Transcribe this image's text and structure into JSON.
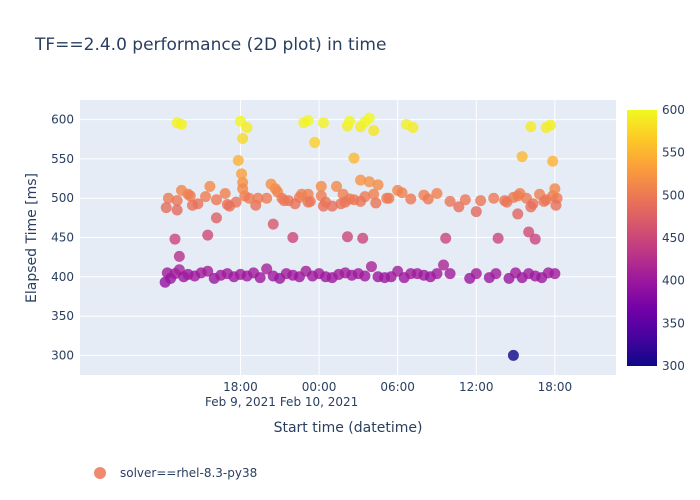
{
  "chart_data": {
    "type": "scatter",
    "title": "TF==2.4.0 performance (2D plot) in time",
    "xlabel": "Start time (datetime)",
    "ylabel": "Elapsed Time [ms]",
    "ylim": [
      275,
      625
    ],
    "xlim": [
      "2021-02-09 05:45",
      "2021-02-10 22:40"
    ],
    "grid": true,
    "legend_position": "bottom-left",
    "x_ticks": [
      {
        "value": "2021-02-09 18:00",
        "label": "18:00",
        "sublabel": "Feb 9, 2021"
      },
      {
        "value": "2021-02-10 00:00",
        "label": "00:00",
        "sublabel": "Feb 10, 2021"
      },
      {
        "value": "2021-02-10 06:00",
        "label": "06:00",
        "sublabel": ""
      },
      {
        "value": "2021-02-10 12:00",
        "label": "12:00",
        "sublabel": ""
      },
      {
        "value": "2021-02-10 18:00",
        "label": "18:00",
        "sublabel": ""
      }
    ],
    "y_ticks": [
      300,
      350,
      400,
      450,
      500,
      550,
      600
    ],
    "colorbar": {
      "min": 300,
      "max": 600,
      "ticks": [
        300,
        350,
        400,
        450,
        500,
        550,
        600
      ],
      "colors": [
        "#0d0887",
        "#46039f",
        "#7201a8",
        "#9c179e",
        "#bd3786",
        "#d8576b",
        "#ed7953",
        "#fb9f3a",
        "#fdca26",
        "#f0f921"
      ]
    },
    "series": [
      {
        "name": "solver==rhel-8.3-py38",
        "marker_color": "#ef8a6f",
        "x": [
          "2021-02-09 12:15",
          "2021-02-09 12:25",
          "2021-02-09 12:40",
          "2021-02-09 13:00",
          "2021-02-09 13:20",
          "2021-02-09 13:40",
          "2021-02-09 14:00",
          "2021-02-09 14:30",
          "2021-02-09 15:00",
          "2021-02-09 15:30",
          "2021-02-09 16:00",
          "2021-02-09 16:30",
          "2021-02-09 17:00",
          "2021-02-09 17:30",
          "2021-02-09 18:00",
          "2021-02-09 18:30",
          "2021-02-09 19:00",
          "2021-02-09 19:30",
          "2021-02-09 20:00",
          "2021-02-09 20:30",
          "2021-02-09 21:00",
          "2021-02-09 21:30",
          "2021-02-09 22:00",
          "2021-02-09 22:30",
          "2021-02-09 23:00",
          "2021-02-09 23:30",
          "2021-02-10 00:00",
          "2021-02-10 00:30",
          "2021-02-10 01:00",
          "2021-02-10 01:30",
          "2021-02-10 02:00",
          "2021-02-10 02:30",
          "2021-02-10 03:00",
          "2021-02-10 03:30",
          "2021-02-10 04:00",
          "2021-02-10 04:30",
          "2021-02-10 05:00",
          "2021-02-10 05:30",
          "2021-02-10 06:00",
          "2021-02-10 06:30",
          "2021-02-10 07:00",
          "2021-02-10 07:30",
          "2021-02-10 08:00",
          "2021-02-10 08:30",
          "2021-02-10 09:00",
          "2021-02-10 09:30",
          "2021-02-10 10:00",
          "2021-02-10 11:30",
          "2021-02-10 12:00",
          "2021-02-10 13:00",
          "2021-02-10 13:30",
          "2021-02-10 14:30",
          "2021-02-10 15:00",
          "2021-02-10 15:30",
          "2021-02-10 16:00",
          "2021-02-10 16:30",
          "2021-02-10 17:00",
          "2021-02-10 17:30",
          "2021-02-10 18:00",
          "2021-02-09 12:30",
          "2021-02-09 13:10",
          "2021-02-09 14:00",
          "2021-02-09 14:45",
          "2021-02-09 15:20",
          "2021-02-09 16:10",
          "2021-02-09 16:50",
          "2021-02-09 17:40",
          "2021-02-09 18:20",
          "2021-02-09 19:10",
          "2021-02-09 20:00",
          "2021-02-09 20:50",
          "2021-02-09 21:40",
          "2021-02-09 22:30",
          "2021-02-09 23:20",
          "2021-02-10 00:10",
          "2021-02-10 01:00",
          "2021-02-10 01:50",
          "2021-02-10 02:40",
          "2021-02-10 03:30",
          "2021-02-10 04:20",
          "2021-02-10 05:10",
          "2021-02-10 06:00",
          "2021-02-10 07:00",
          "2021-02-10 08:00",
          "2021-02-10 09:00",
          "2021-02-10 10:00",
          "2021-02-10 10:40",
          "2021-02-10 11:10",
          "2021-02-10 12:20",
          "2021-02-10 14:20",
          "2021-02-10 14:50",
          "2021-02-10 15:20",
          "2021-02-10 15:50",
          "2021-02-10 16:20",
          "2021-02-10 16:50",
          "2021-02-10 17:20",
          "2021-02-10 17:50",
          "2021-02-10 18:10",
          "2021-02-09 12:20",
          "2021-02-09 13:30",
          "2021-02-09 14:10",
          "2021-02-09 15:40",
          "2021-02-09 17:10",
          "2021-02-09 18:10",
          "2021-02-09 19:20",
          "2021-02-09 20:40",
          "2021-02-09 21:20",
          "2021-02-09 22:10",
          "2021-02-09 23:10",
          "2021-02-10 00:20",
          "2021-02-10 01:20",
          "2021-02-10 02:20",
          "2021-02-10 03:10",
          "2021-02-10 04:10",
          "2021-02-10 05:20",
          "2021-02-10 06:20",
          "2021-02-10 08:20",
          "2021-02-10 12:00",
          "2021-02-10 13:20",
          "2021-02-10 14:10",
          "2021-02-10 15:10",
          "2021-02-10 16:10",
          "2021-02-10 17:10",
          "2021-02-10 18:05",
          "2021-02-09 13:00",
          "2021-02-09 13:20",
          "2021-02-09 15:30",
          "2021-02-09 17:00",
          "2021-02-09 20:30",
          "2021-02-09 22:00",
          "2021-02-10 00:30",
          "2021-02-10 02:10",
          "2021-02-10 03:20",
          "2021-02-10 09:40",
          "2021-02-10 13:40",
          "2021-02-10 16:00",
          "2021-02-10 16:30",
          "2021-02-09 13:10",
          "2021-02-09 14:20",
          "2021-02-09 16:10",
          "2021-02-09 18:10",
          "2021-02-09 18:40",
          "2021-02-09 20:20",
          "2021-02-09 22:40",
          "2021-02-09 23:10",
          "2021-02-10 00:10",
          "2021-02-10 01:40",
          "2021-02-10 02:00",
          "2021-02-10 03:10",
          "2021-02-10 15:10",
          "2021-02-10 18:00",
          "2021-02-09 18:05",
          "2021-02-09 21:10",
          "2021-02-10 03:50",
          "2021-02-10 04:30",
          "2021-02-09 13:10",
          "2021-02-09 13:30",
          "2021-02-09 17:50",
          "2021-02-09 18:00",
          "2021-02-09 18:30",
          "2021-02-09 18:10",
          "2021-02-09 23:10",
          "2021-02-09 23:40",
          "2021-02-09 22:50",
          "2021-02-10 00:20",
          "2021-02-10 02:10",
          "2021-02-10 02:40",
          "2021-02-10 02:20",
          "2021-02-10 03:10",
          "2021-02-10 03:30",
          "2021-02-10 03:50",
          "2021-02-10 04:10",
          "2021-02-10 06:40",
          "2021-02-10 07:10",
          "2021-02-10 15:30",
          "2021-02-10 16:10",
          "2021-02-10 17:20",
          "2021-02-10 17:40",
          "2021-02-10 17:50",
          "2021-02-10 14:50"
        ],
        "y": [
          393,
          405,
          398,
          404,
          409,
          400,
          403,
          401,
          405,
          407,
          398,
          402,
          404,
          400,
          403,
          401,
          405,
          399,
          410,
          401,
          398,
          404,
          402,
          400,
          407,
          401,
          404,
          400,
          399,
          403,
          405,
          402,
          404,
          401,
          413,
          400,
          399,
          400,
          407,
          399,
          404,
          404,
          402,
          400,
          404,
          415,
          404,
          398,
          404,
          399,
          404,
          398,
          405,
          399,
          404,
          401,
          399,
          405,
          404,
          500,
          497,
          505,
          493,
          502,
          498,
          506,
          495,
          503,
          491,
          500,
          508,
          497,
          501,
          496,
          503,
          490,
          505,
          498,
          502,
          494,
          500,
          510,
          499,
          504,
          506,
          496,
          489,
          498,
          497,
          495,
          501,
          506,
          500,
          493,
          505,
          498,
          503,
          500,
          488,
          510,
          503,
          515,
          490,
          520,
          500,
          512,
          497,
          493,
          505,
          490,
          515,
          499,
          496,
          505,
          500,
          507,
          499,
          483,
          500,
          497,
          503,
          489,
          496,
          491,
          448,
          426,
          453,
          492,
          467,
          450,
          495,
          451,
          449,
          449,
          449,
          457,
          448,
          485,
          491,
          475,
          512,
          500,
          518,
          505,
          495,
          515,
          493,
          495,
          523,
          480,
          512,
          531,
          500,
          521,
          517,
          596,
          594,
          548,
          598,
          590,
          576,
          599,
          571,
          596,
          596,
          592,
          551,
          598,
          591,
          597,
          602,
          586,
          594,
          590,
          553,
          591,
          590,
          593,
          547,
          300
        ]
      }
    ]
  }
}
